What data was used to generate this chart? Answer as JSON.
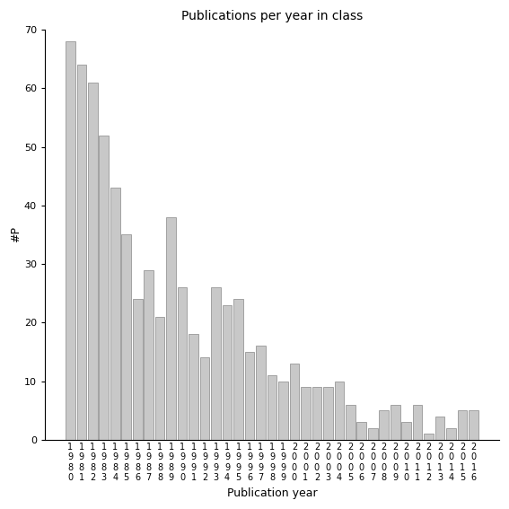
{
  "title": "Publications per year in class",
  "xlabel": "Publication year",
  "ylabel": "#P",
  "bar_color": "#c8c8c8",
  "edge_color": "#888888",
  "ylim": [
    0,
    70
  ],
  "yticks": [
    0,
    10,
    20,
    30,
    40,
    50,
    60,
    70
  ],
  "background_color": "#ffffff",
  "categories": [
    "1980",
    "1981",
    "1982",
    "1983",
    "1984",
    "1985",
    "1986",
    "1987",
    "1988",
    "1989",
    "1990",
    "1991",
    "1992",
    "1993",
    "1994",
    "1995",
    "1996",
    "1997",
    "1998",
    "1999",
    "2000",
    "2001",
    "2002",
    "2003",
    "2004",
    "2005",
    "2006",
    "2007",
    "2008",
    "2009",
    "2010",
    "2011",
    "2012",
    "2013",
    "2014",
    "2015",
    "2016"
  ],
  "values": [
    68,
    64,
    61,
    52,
    43,
    35,
    24,
    29,
    21,
    38,
    26,
    18,
    14,
    26,
    23,
    24,
    15,
    16,
    11,
    10,
    13,
    9,
    9,
    9,
    10,
    6,
    3,
    2,
    5,
    6,
    3,
    6,
    1,
    4,
    2,
    5,
    5
  ]
}
